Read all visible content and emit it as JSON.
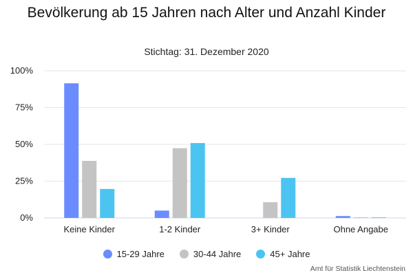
{
  "chart_data": {
    "type": "bar",
    "title": "Bevölkerung ab 15 Jahren nach Alter und Anzahl Kinder",
    "subtitle": "Stichtag: 31. Dezember 2020",
    "categories": [
      "Keine Kinder",
      "1-2 Kinder",
      "3+ Kinder",
      "Ohne Angabe"
    ],
    "series": [
      {
        "name": "15-29 Jahre",
        "color": "#6a8cff",
        "values": [
          91.5,
          5.0,
          0.0,
          1.3
        ]
      },
      {
        "name": "30-44 Jahre",
        "color": "#c4c4c4",
        "values": [
          38.8,
          47.4,
          10.7,
          0.5
        ]
      },
      {
        "name": "45+ Jahre",
        "color": "#4cc4f2",
        "values": [
          19.7,
          50.9,
          27.2,
          0.4
        ]
      }
    ],
    "ylim": [
      0,
      100
    ],
    "yticks": [
      {
        "value": 0,
        "label": "0%"
      },
      {
        "value": 25,
        "label": "25%"
      },
      {
        "value": 50,
        "label": "50%"
      },
      {
        "value": 75,
        "label": "75%"
      },
      {
        "value": 100,
        "label": "100%"
      }
    ],
    "grid": true,
    "legend_position": "bottom",
    "credits": "Amt für Statistik Liechtenstein"
  }
}
